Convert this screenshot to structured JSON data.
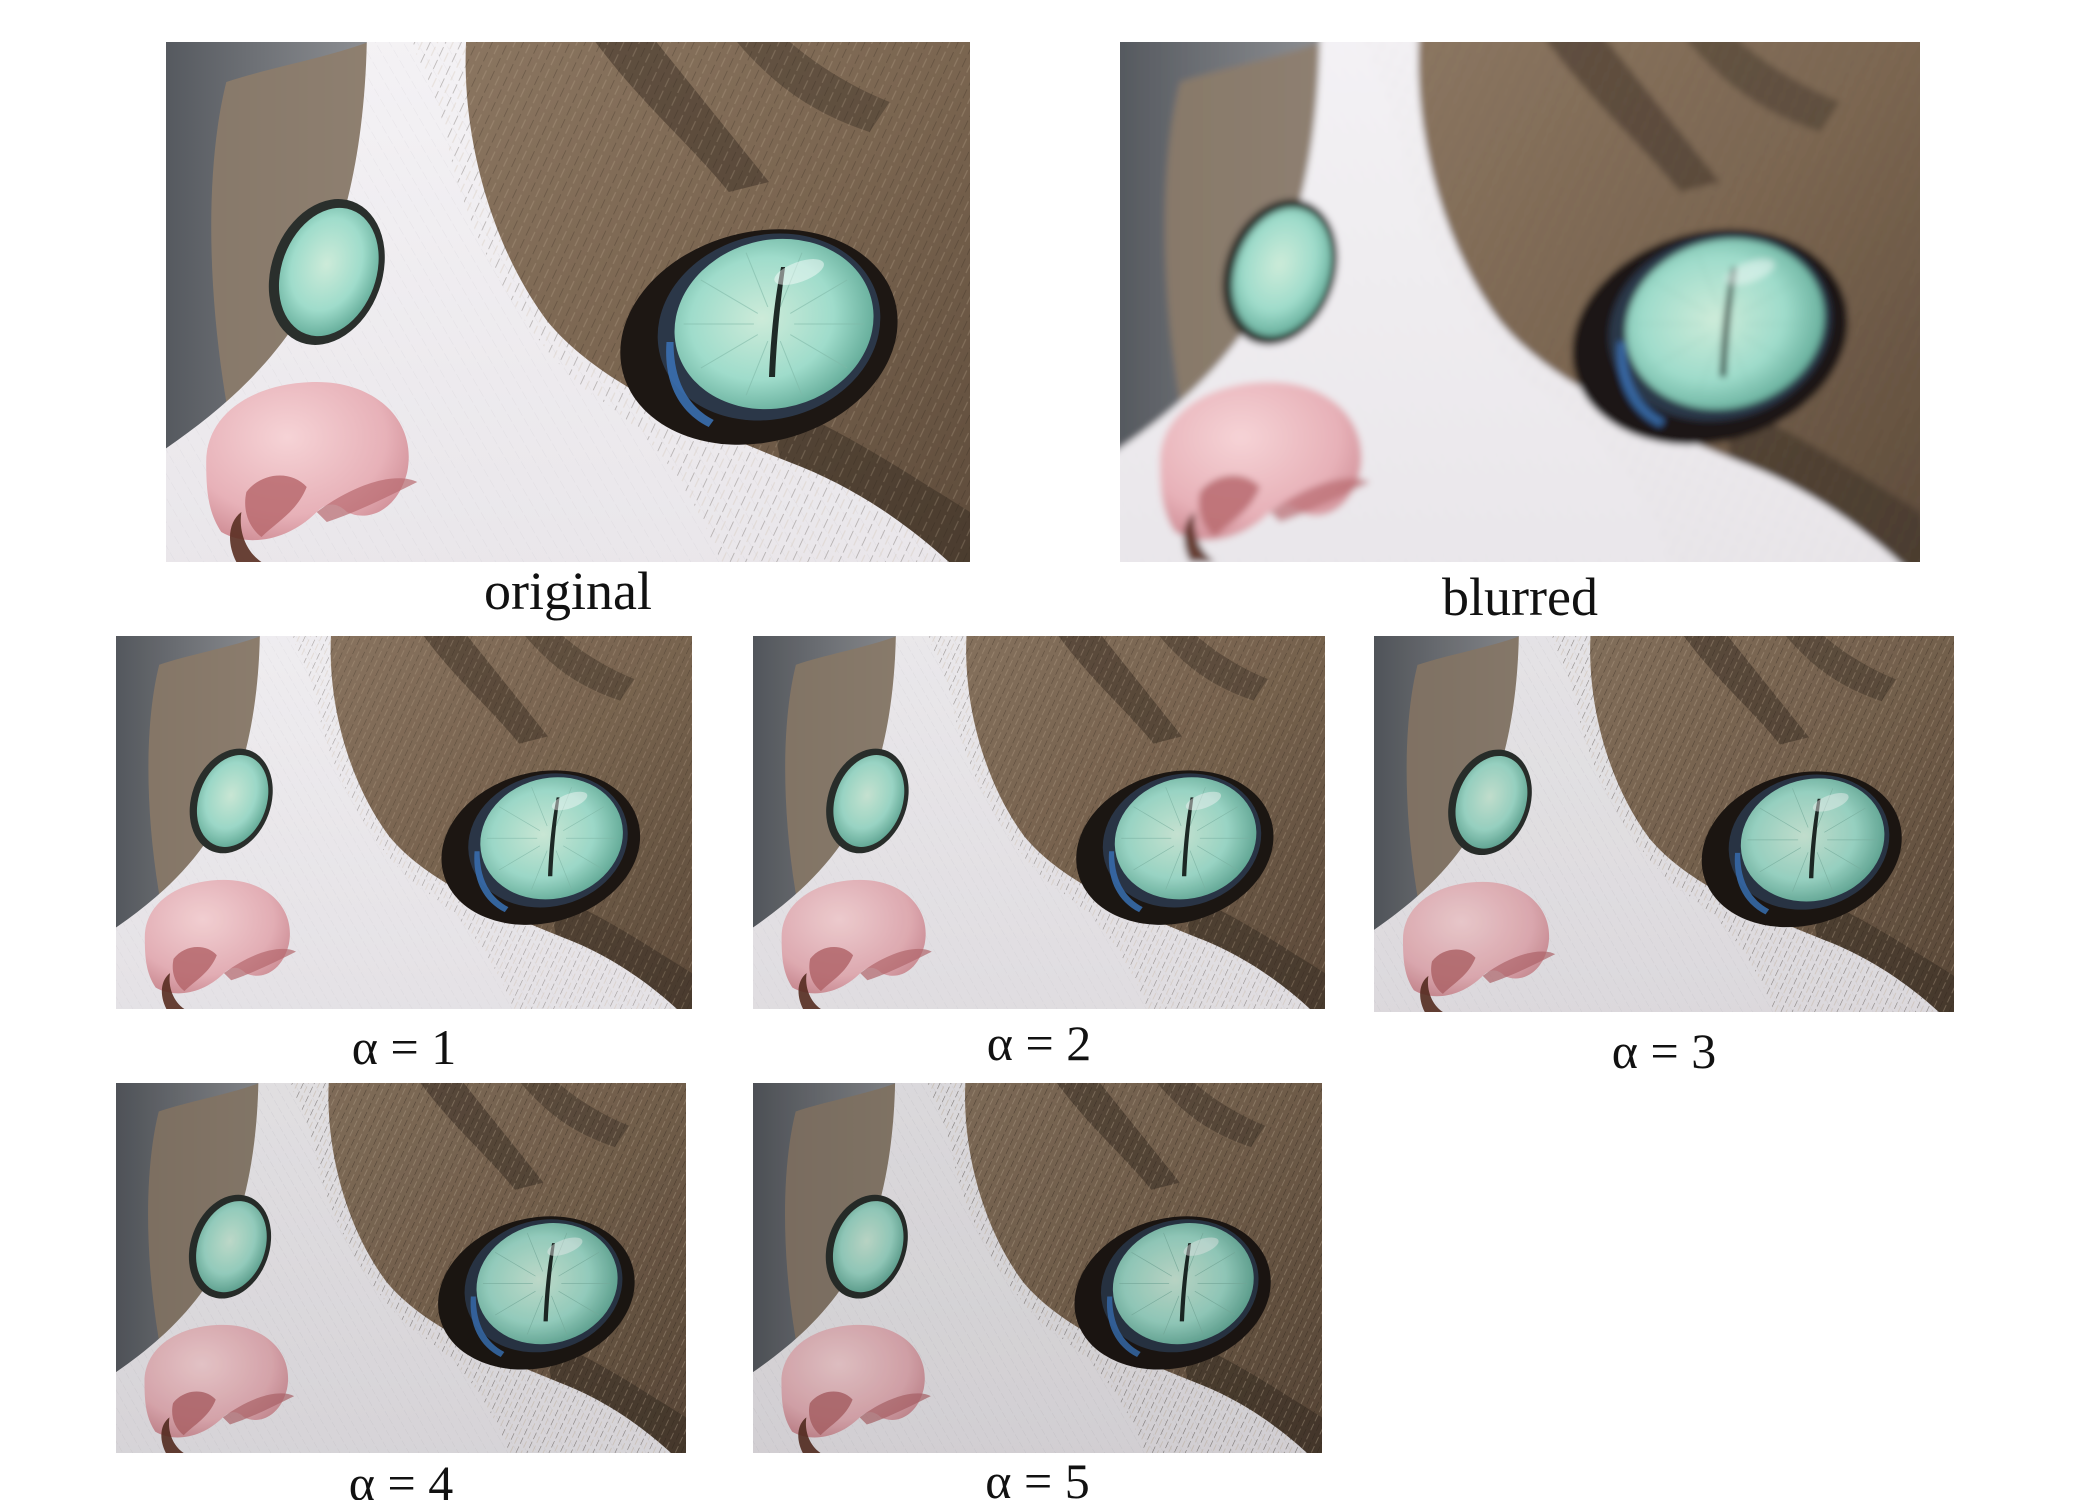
{
  "figure": {
    "panels": [
      {
        "id": "original",
        "label": "original",
        "blurred": true,
        "blur_level": 0,
        "sharpen_level": 0
      },
      {
        "id": "blurred",
        "label": "blurred",
        "blurred": true,
        "blur_level": 1,
        "sharpen_level": 0
      },
      {
        "id": "a1",
        "label": "α = 1",
        "alpha": 1
      },
      {
        "id": "a2",
        "label": "α = 2",
        "alpha": 2
      },
      {
        "id": "a3",
        "label": "α = 3",
        "alpha": 3
      },
      {
        "id": "a4",
        "label": "α = 4",
        "alpha": 4
      },
      {
        "id": "a5",
        "label": "α = 5",
        "alpha": 5
      }
    ]
  },
  "colors": {
    "background": "#ffffff",
    "fur_white": "#e9e6ea",
    "fur_brown": "#7a6550",
    "fur_dark": "#3f3328",
    "iris": "#9fdccb",
    "iris_edge": "#5fa895",
    "pupil": "#1e2a26",
    "nose": "#e7b1b8",
    "nose_shadow": "#b86a6f",
    "bg_gray": "#6b6f74"
  }
}
